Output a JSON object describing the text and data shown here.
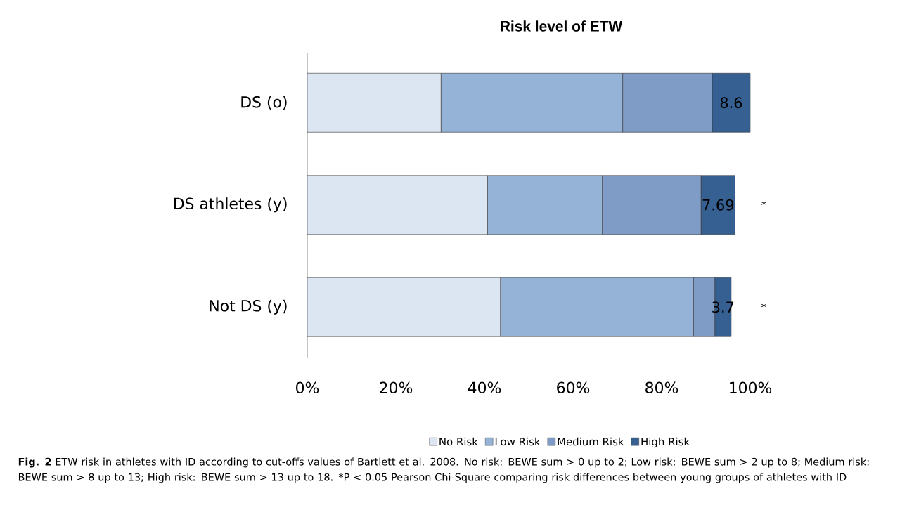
{
  "chart_data": {
    "type": "bar",
    "orientation": "horizontal",
    "stacked": true,
    "title": "Risk level of ETW",
    "categories": [
      "DS (o)",
      "DS athletes (y)",
      "Not DS (y)"
    ],
    "series": [
      {
        "name": "No Risk",
        "color": "#dce6f2",
        "values": [
          30.2,
          40.7,
          43.6
        ]
      },
      {
        "name": "Low Risk",
        "color": "#95b3d7",
        "values": [
          41.0,
          25.9,
          43.6
        ]
      },
      {
        "name": "Medium Risk",
        "color": "#7f9cc7",
        "values": [
          20.2,
          22.3,
          4.8
        ]
      },
      {
        "name": "High Risk",
        "color": "#366092",
        "values": [
          8.6,
          7.69,
          3.7
        ],
        "data_labels": true
      }
    ],
    "xlim": [
      0,
      100
    ],
    "xticks": [
      {
        "value": 0,
        "label": "0%"
      },
      {
        "value": 20,
        "label": "20%"
      },
      {
        "value": 40,
        "label": "40%"
      },
      {
        "value": 60,
        "label": "60%"
      },
      {
        "value": 80,
        "label": "80%"
      },
      {
        "value": 100,
        "label": "100%"
      }
    ],
    "legend": "bottom",
    "grid": false,
    "annotations": [
      "*",
      "*",
      "**Fig. 2** ETW risk in athletes with ID according to cut-offs values of Bartlett et al. 2008. No risk: BEWE sum > 0 up to 2; Low risk: BEWE sum > 2 up to 8; Medium risk: BEWE sum > 8 up to 13; High risk: BEWE sum > 13 up to 18. *P < 0.05 Pearson Chi-Square comparing risk differences between young groups of athletes with ID"
    ]
  }
}
